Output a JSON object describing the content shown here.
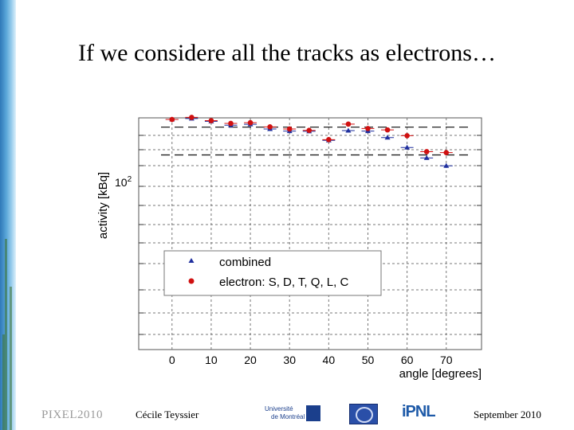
{
  "slide": {
    "title": "If we considere all the tracks as electrons…"
  },
  "footer": {
    "conference": "PIXEL2010",
    "author": "Cécile Teyssier",
    "date": "September 2010",
    "logo_udem_line1": "Université",
    "logo_udem_line2": "de Montréal",
    "logo_ipnl": "iPNL"
  },
  "colors": {
    "combined": "#1f2f9e",
    "electron": "#d01010",
    "grid": "#777777",
    "dashed": "#222222"
  },
  "chart_data": {
    "type": "scatter",
    "xlabel": "angle [degrees]",
    "ylabel": "activity [kBq]",
    "xlim": [
      -8.5,
      79
    ],
    "ylim": [
      0,
      100
    ],
    "y_tick_label": "10",
    "y_tick_exponent": "2",
    "y_tick_value": 100,
    "x_ticks": [
      0,
      10,
      20,
      30,
      40,
      50,
      60,
      70
    ],
    "grid": true,
    "legend_position": "lower-center",
    "legend": [
      "combined",
      "electron: S, D, T, Q, L, C"
    ],
    "reference_lines": [
      96,
      84
    ],
    "series": [
      {
        "name": "combined",
        "marker": "triangle",
        "x": [
          0,
          5,
          10,
          15,
          20,
          25,
          30,
          35,
          40,
          45,
          50,
          55,
          60,
          65,
          70
        ],
        "y": [
          99.3,
          99.7,
          98.5,
          96.8,
          97.2,
          95.2,
          94.3,
          94.2,
          90.3,
          94.5,
          94.3,
          91.5,
          87.2,
          82.7,
          79.3
        ]
      },
      {
        "name": "electron: S, D, T, Q, L, C",
        "marker": "circle",
        "x": [
          0,
          5,
          10,
          15,
          20,
          25,
          30,
          35,
          40,
          45,
          50,
          55,
          60,
          65,
          70
        ],
        "y": [
          99.3,
          100.2,
          98.8,
          97.6,
          97.9,
          96.1,
          95.2,
          94.6,
          90.6,
          97.3,
          95.4,
          94.8,
          92.3,
          85.4,
          85.0
        ]
      }
    ]
  }
}
